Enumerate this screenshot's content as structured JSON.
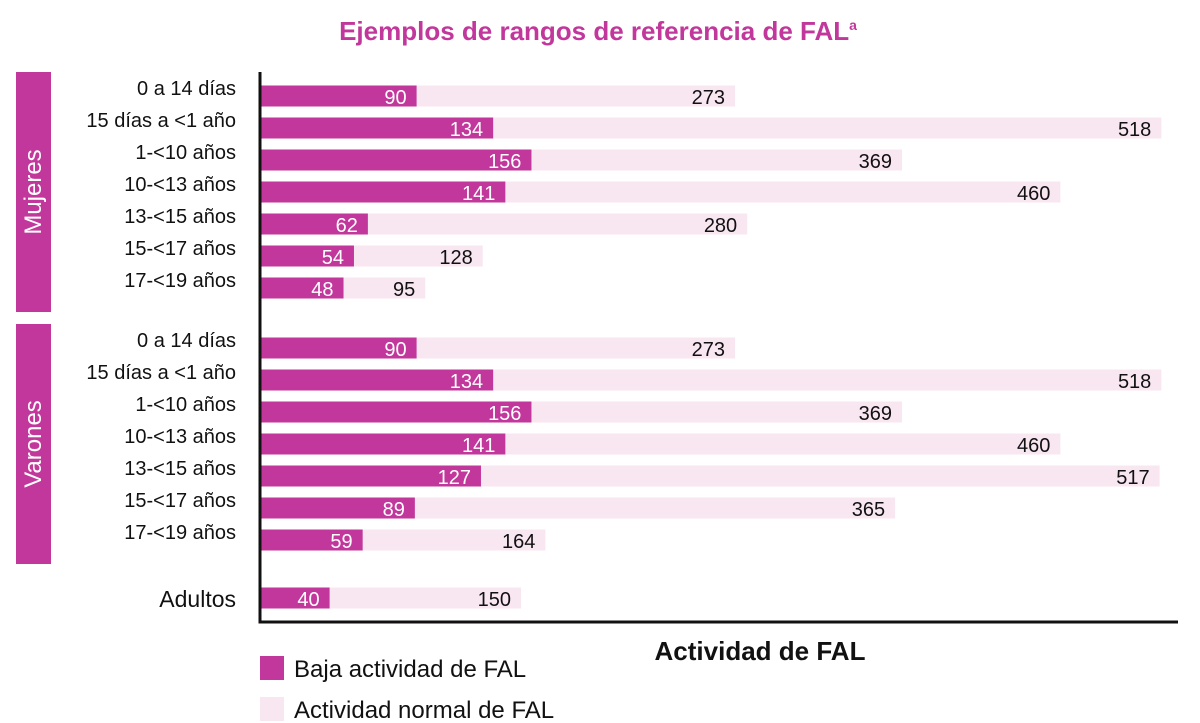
{
  "chart_data": {
    "type": "bar",
    "orientation": "horizontal",
    "stacked": false,
    "title": "Ejemplos de rangos de referencia de FAL",
    "title_superscript": "a",
    "xlabel": "Actividad de FAL",
    "xlim": [
      0,
      550
    ],
    "grid": false,
    "legend_position": "bottom-left",
    "colors": {
      "low": "#c2379b",
      "normal": "#f8e6f1",
      "group_band": "#c2379b",
      "title": "#c2379b"
    },
    "groups": [
      {
        "name": "Mujeres",
        "categories": [
          "0 a 14 días",
          "15 días a <1 año",
          "1-<10 años",
          "10-<13 años",
          "13-<15 años",
          "15-<17 años",
          "17-<19 años"
        ],
        "low": [
          90,
          134,
          156,
          141,
          62,
          54,
          48
        ],
        "normal": [
          273,
          518,
          369,
          460,
          280,
          128,
          95
        ]
      },
      {
        "name": "Varones",
        "categories": [
          "0 a 14 días",
          "15 días a <1 año",
          "1-<10 años",
          "10-<13 años",
          "13-<15 años",
          "15-<17 años",
          "17-<19 años"
        ],
        "low": [
          90,
          134,
          156,
          141,
          127,
          89,
          59
        ],
        "normal": [
          273,
          518,
          369,
          460,
          517,
          365,
          164
        ]
      },
      {
        "name": "",
        "categories": [
          "Adultos"
        ],
        "low": [
          40
        ],
        "normal": [
          150
        ]
      }
    ],
    "series": [
      {
        "key": "low",
        "name": "Baja actividad de FAL"
      },
      {
        "key": "normal",
        "name": "Actividad normal de FAL"
      }
    ]
  }
}
